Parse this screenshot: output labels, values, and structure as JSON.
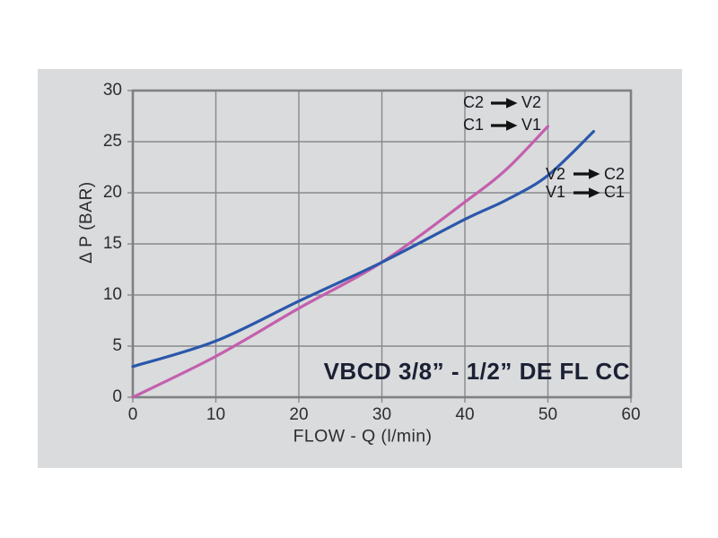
{
  "window": {
    "background": "#ffffff",
    "panel_background": "#d9dbdc"
  },
  "colors": {
    "grid": "#87898c",
    "border": "#7e8083",
    "tick_text": "#2d2d2f",
    "title_text": "#1b2034",
    "legend_text": "#16181f",
    "arrow": "#121212",
    "series_c_to_v": "#c45fae",
    "series_v_to_c": "#2b57ab"
  },
  "chart_data": {
    "type": "line",
    "title": "VBCD 3/8” - 1/2” DE FL CC",
    "xlabel": "FLOW -  Q (l/min)",
    "ylabel": "Δ P (BAR)",
    "xlim": [
      0,
      60
    ],
    "ylim": [
      0,
      30
    ],
    "xticks": [
      0,
      10,
      20,
      30,
      40,
      50,
      60
    ],
    "yticks": [
      0,
      5,
      10,
      15,
      20,
      25,
      30
    ],
    "grid": true,
    "legend_position": "inside plot: top-right (C→V) and mid-right (V→C)",
    "series": [
      {
        "name": "C-to-V (C2→V2 / C1→V1)",
        "color": "#c45fae",
        "points": [
          [
            0,
            0
          ],
          [
            10,
            4.0
          ],
          [
            20,
            8.7
          ],
          [
            30,
            13.2
          ],
          [
            40,
            19.1
          ],
          [
            45,
            22.3
          ],
          [
            50,
            26.5
          ]
        ]
      },
      {
        "name": "V-to-C (V2→C2 / V1→C1)",
        "color": "#2b57ab",
        "points": [
          [
            0,
            3.0
          ],
          [
            10,
            5.5
          ],
          [
            20,
            9.4
          ],
          [
            30,
            13.2
          ],
          [
            40,
            17.4
          ],
          [
            45,
            19.3
          ],
          [
            50,
            21.7
          ],
          [
            55.5,
            26.0
          ]
        ]
      }
    ],
    "legends": [
      {
        "rows": [
          {
            "from": "C2",
            "to": "V2"
          },
          {
            "from": "C1",
            "to": "V1"
          }
        ]
      },
      {
        "rows": [
          {
            "from": "V2",
            "to": "C2"
          },
          {
            "from": "V1",
            "to": "C1"
          }
        ]
      }
    ]
  }
}
